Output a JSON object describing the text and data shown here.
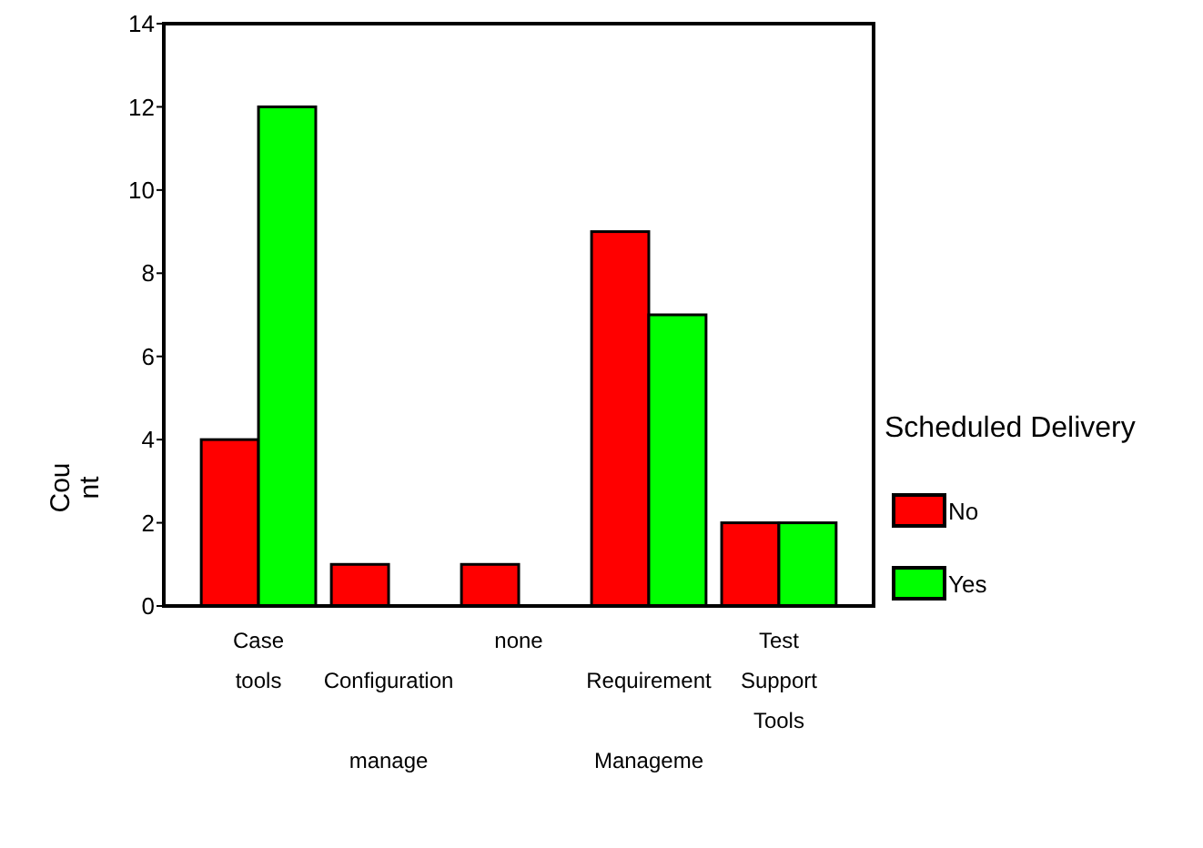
{
  "chart_data": {
    "type": "bar",
    "ylabel": "Count",
    "legend_title": "Scheduled Delivery",
    "legend": "right",
    "categories": [
      "Case tools",
      "Configuration manage",
      "none",
      "Requirement Manageme",
      "Test Support Tools"
    ],
    "series": [
      {
        "name": "No",
        "color": "#ff0000",
        "values": [
          4,
          1,
          1,
          9,
          2
        ]
      },
      {
        "name": "Yes",
        "color": "#00ff00",
        "values": [
          12,
          0,
          0,
          7,
          2
        ]
      }
    ],
    "ylim": [
      0,
      14
    ],
    "yticks": [
      0,
      2,
      4,
      6,
      8,
      10,
      12,
      14
    ]
  }
}
